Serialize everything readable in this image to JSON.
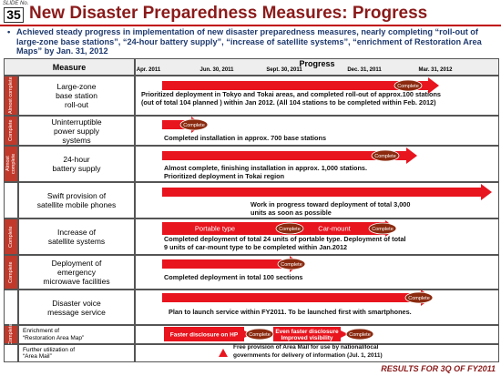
{
  "header": {
    "slide_label": "SLIDE No.",
    "slide_number": "35",
    "title": "New Disaster Preparedness Measures: Progress"
  },
  "summary": "Achieved steady progress in implementation of  new disaster preparedness measures, nearly completing “roll-out of large-zone base stations”, “24-hour battery supply”, “increase of satellite systems”, “enrichment of Restoration Area Maps” by Jan. 31, 2012",
  "table": {
    "measure_header": "Measure",
    "progress_header": "Progress",
    "dates": [
      "Apr. 2011",
      "Jun. 30, 2011",
      "Sept. 30, 2011",
      "Dec. 31, 2011",
      "Mar. 31, 2012"
    ],
    "rows": [
      {
        "status": "Almost complete",
        "measure": [
          "Large-zone",
          "base station",
          "roll-out"
        ],
        "milestones": [
          "Complete"
        ],
        "note": [
          "Prioritized deployment in Tokyo and Tokai areas, and completed roll-out of approx.100 stations",
          "(out of total 104 planned ) within Jan 2012.  (All 104 stations to be completed within Feb. 2012)"
        ]
      },
      {
        "status": "Complete",
        "measure": [
          "Uninterruptible",
          "power supply",
          "systems"
        ],
        "milestones": [
          "Complete"
        ],
        "note": [
          "Completed installation in approx. 700 base stations"
        ]
      },
      {
        "status": "Almost complete",
        "measure": [
          "24-hour",
          "battery supply"
        ],
        "milestones": [
          "Complete"
        ],
        "note": [
          "Almost complete, finishing installation in approx. 1,000 stations.",
          "Prioritized deployment in Tokai region"
        ]
      },
      {
        "measure": [
          "Swift provision of",
          "satellite mobile phones"
        ],
        "note": [
          "Work in progress toward deployment of total 3,000",
          "units as soon as possible"
        ]
      },
      {
        "status": "Complete",
        "measure": [
          "Increase of",
          "satellite systems"
        ],
        "phases": [
          "Portable type",
          "Car-mount"
        ],
        "milestones": [
          "Complete",
          "Complete"
        ],
        "note": [
          "Completed deployment of total 24 units of portable type.  Deployment of total",
          "9 units  of car-mount type to be completed within  Jan.2012"
        ]
      },
      {
        "status": "Complete",
        "measure": [
          "Deployment of",
          "emergency",
          "microwave  facilities"
        ],
        "milestones": [
          "Complete"
        ],
        "note": [
          "Completed deployment in total 100 sections"
        ]
      },
      {
        "measure": [
          "Disaster voice",
          "message service"
        ],
        "milestones": [
          "Complete"
        ],
        "note": [
          "Plan to launch service within FY2011. To be launched first with smartphones."
        ]
      },
      {
        "status": "Complete",
        "measure": [
          "Enrichment of",
          "“Restoration Area Map”"
        ],
        "steps": [
          [
            "Faster disclosure on HP"
          ],
          [
            "Even faster disclosure",
            "Improved visibility"
          ]
        ],
        "milestones": [
          "Complete",
          "Complete"
        ]
      },
      {
        "measure": [
          "Further utilization of",
          "“Area Mail”"
        ],
        "note": [
          "Free provision of Area Mail for use by national/local",
          "governments for delivery of information (Jul. 1, 2011)"
        ]
      }
    ]
  },
  "footer": "RESULTS FOR 3Q OF FY2011"
}
